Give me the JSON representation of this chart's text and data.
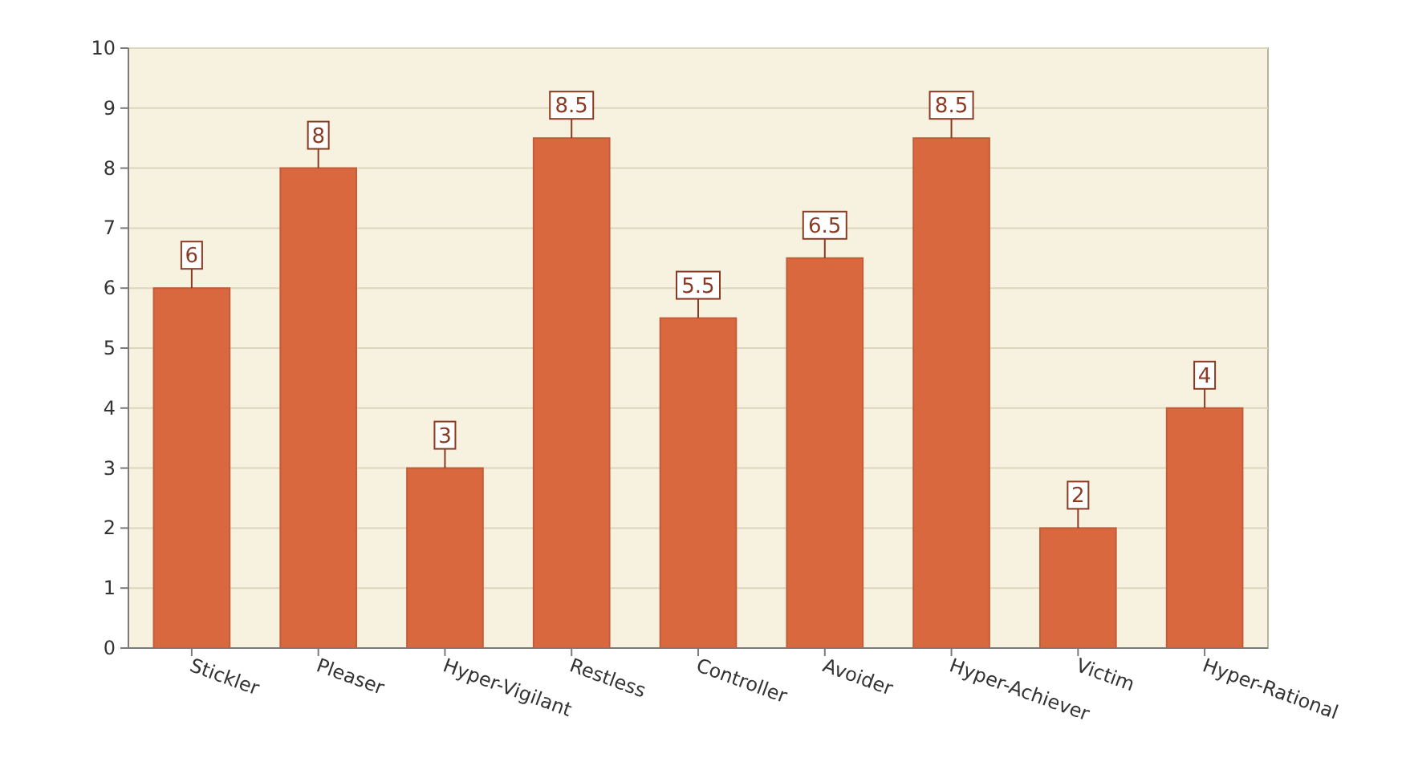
{
  "chart_data": {
    "type": "bar",
    "categories": [
      "Stickler",
      "Pleaser",
      "Hyper-Vigilant",
      "Restless",
      "Controller",
      "Avoider",
      "Hyper-Achiever",
      "Victim",
      "Hyper-Rational"
    ],
    "values": [
      6,
      8,
      3,
      8.5,
      5.5,
      6.5,
      8.5,
      2,
      4
    ],
    "color": "#d9683f",
    "ylim": [
      0,
      10
    ],
    "yticks": [
      0,
      1,
      2,
      3,
      4,
      5,
      6,
      7,
      8,
      9,
      10
    ],
    "grid": "y",
    "data_labels": true
  }
}
